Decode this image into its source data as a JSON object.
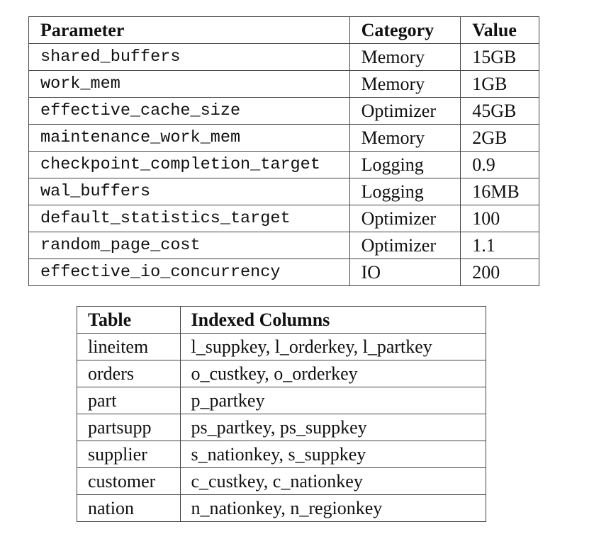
{
  "params_table": {
    "headers": [
      "Parameter",
      "Category",
      "Value"
    ],
    "rows": [
      [
        "shared_buffers",
        "Memory",
        "15GB"
      ],
      [
        "work_mem",
        "Memory",
        "1GB"
      ],
      [
        "effective_cache_size",
        "Optimizer",
        "45GB"
      ],
      [
        "maintenance_work_mem",
        "Memory",
        "2GB"
      ],
      [
        "checkpoint_completion_target",
        "Logging",
        "0.9"
      ],
      [
        "wal_buffers",
        "Logging",
        "16MB"
      ],
      [
        "default_statistics_target",
        "Optimizer",
        "100"
      ],
      [
        "random_page_cost",
        "Optimizer",
        "1.1"
      ],
      [
        "effective_io_concurrency",
        "IO",
        "200"
      ]
    ]
  },
  "index_table": {
    "headers": [
      "Table",
      "Indexed Columns"
    ],
    "rows": [
      [
        "lineitem",
        "l_suppkey, l_orderkey, l_partkey"
      ],
      [
        "orders",
        "o_custkey, o_orderkey"
      ],
      [
        "part",
        "p_partkey"
      ],
      [
        "partsupp",
        "ps_partkey, ps_suppkey"
      ],
      [
        "supplier",
        "s_nationkey, s_suppkey"
      ],
      [
        "customer",
        "c_custkey, c_nationkey"
      ],
      [
        "nation",
        "n_nationkey, n_regionkey"
      ]
    ]
  }
}
